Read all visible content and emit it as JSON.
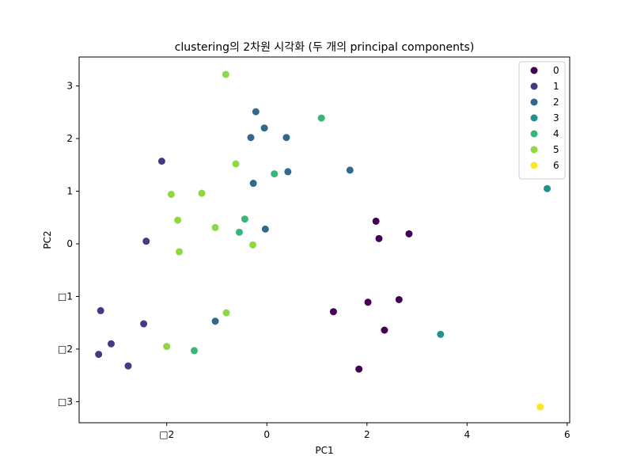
{
  "chart_data": {
    "type": "scatter",
    "title": "clustering의 2차원 시각화 (두 개의 principal components)",
    "xlabel": "PC1",
    "ylabel": "PC2",
    "xlim": [
      -3.75,
      6.05
    ],
    "ylim": [
      -3.4,
      3.55
    ],
    "x_ticks": [
      -2,
      0,
      2,
      4,
      6
    ],
    "y_ticks": [
      -3,
      -2,
      -1,
      0,
      1,
      2,
      3
    ],
    "x_tick_labels": [
      "□2",
      "0",
      "2",
      "4",
      "6"
    ],
    "y_tick_labels": [
      "□3",
      "□2",
      "□1",
      "0",
      "1",
      "2",
      "3"
    ],
    "grid": false,
    "legend_position": "top-right",
    "series": [
      {
        "name": "0",
        "color": "#440154",
        "x": [
          2.18,
          2.24,
          2.84,
          1.33,
          2.02,
          2.64,
          2.35,
          1.84
        ],
        "y": [
          0.43,
          0.1,
          0.19,
          -1.29,
          -1.11,
          -1.06,
          -1.64,
          -2.38
        ]
      },
      {
        "name": "1",
        "color": "#443983",
        "x": [
          -2.1,
          -2.41,
          -3.32,
          -2.46,
          -3.11,
          -3.36,
          -2.77
        ],
        "y": [
          1.57,
          0.05,
          -1.27,
          -1.52,
          -1.9,
          -2.1,
          -2.32
        ]
      },
      {
        "name": "2",
        "color": "#31688e",
        "x": [
          -0.22,
          -0.05,
          -0.32,
          0.39,
          0.42,
          1.66,
          -0.27,
          -0.03,
          -1.03
        ],
        "y": [
          2.51,
          2.2,
          2.02,
          2.02,
          1.37,
          1.4,
          1.15,
          0.28,
          -1.47
        ]
      },
      {
        "name": "3",
        "color": "#21918c",
        "x": [
          5.6,
          3.47
        ],
        "y": [
          1.05,
          -1.72
        ]
      },
      {
        "name": "4",
        "color": "#35b779",
        "x": [
          1.09,
          0.15,
          -0.44,
          -0.55,
          -1.45
        ],
        "y": [
          2.39,
          1.33,
          0.47,
          0.22,
          -2.03
        ]
      },
      {
        "name": "5",
        "color": "#90d743",
        "x": [
          -0.82,
          -0.62,
          -1.91,
          -1.3,
          -1.78,
          -1.03,
          -1.75,
          -0.28,
          -0.81,
          -2.0
        ],
        "y": [
          3.22,
          1.52,
          0.94,
          0.96,
          0.45,
          0.31,
          -0.15,
          -0.02,
          -1.31,
          -1.95
        ]
      },
      {
        "name": "6",
        "color": "#fde725",
        "x": [
          5.46
        ],
        "y": [
          -3.1
        ]
      }
    ]
  }
}
